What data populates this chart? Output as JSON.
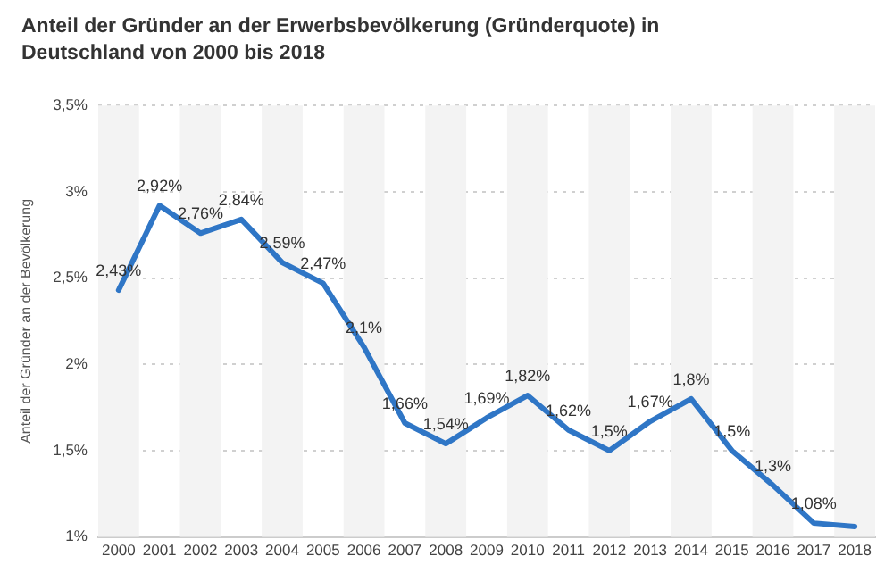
{
  "chart_data": {
    "type": "line",
    "title": "Anteil der Gründer an der Erwerbsbevölkerung (Gründerquote) in Deutschland von 2000 bis 2018",
    "ylabel": "Anteil der Gründer an der Bevölkerung",
    "categories": [
      "2000",
      "2001",
      "2002",
      "2003",
      "2004",
      "2005",
      "2006",
      "2007",
      "2008",
      "2009",
      "2010",
      "2011",
      "2012",
      "2013",
      "2014",
      "2015",
      "2016",
      "2017",
      "2018"
    ],
    "series": [
      {
        "color": "#2f76c6",
        "values": [
          2.43,
          2.92,
          2.76,
          2.84,
          2.59,
          2.47,
          2.1,
          1.66,
          1.54,
          1.69,
          1.82,
          1.62,
          1.5,
          1.67,
          1.8,
          1.5,
          1.3,
          1.08,
          1.06
        ],
        "value_labels": [
          "2,43%",
          "2,92%",
          "2,76%",
          "2,84%",
          "2,59%",
          "2,47%",
          "2,1%",
          "1,66%",
          "1,54%",
          "1,69%",
          "1,82%",
          "1,62%",
          "1,5%",
          "1,67%",
          "1,8%",
          "1,5%",
          "1,3%",
          "1,08%",
          null
        ]
      }
    ],
    "ylim": [
      1,
      3.5
    ],
    "yticks": [
      {
        "value": 1,
        "label": "1%"
      },
      {
        "value": 1.5,
        "label": "1,5%"
      },
      {
        "value": 2,
        "label": "2%"
      },
      {
        "value": 2.5,
        "label": "2,5%"
      },
      {
        "value": 3,
        "label": "3%"
      },
      {
        "value": 3.5,
        "label": "3,5%"
      }
    ],
    "grid": "y",
    "legend": false,
    "marker": "none",
    "line_style": "solid"
  }
}
